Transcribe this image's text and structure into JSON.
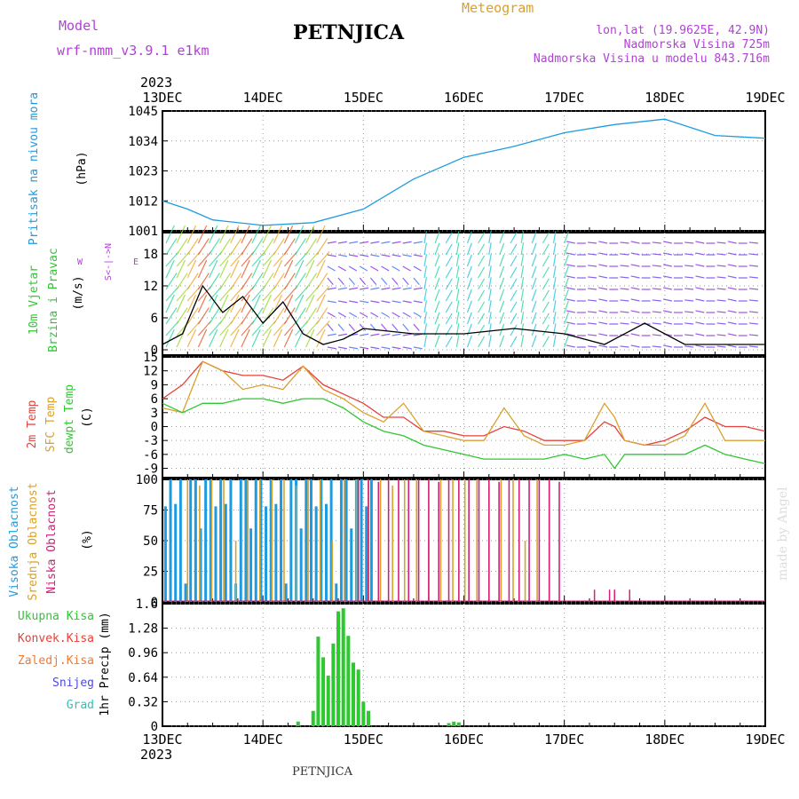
{
  "header": {
    "model_label": "Model",
    "model_name": "wrf-nmm_v3.9.1 e1km",
    "station": "PETNJICA",
    "meteogram": "Meteogram",
    "lonlat": "lon,lat (19.9625E, 42.9N)",
    "altitude": "Nadmorska Visina 725m",
    "model_altitude": "Nadmorska Visina u modelu 843.716m",
    "year_top": "2023",
    "year_bottom": "2023",
    "footer_station": "PETNJICA",
    "credit": "made by Angel"
  },
  "colors": {
    "pressure": "#1e9be0",
    "temp2m": "#e8403a",
    "sfc": "#d9a12c",
    "dew": "#2ec830",
    "high_cloud": "#1e9be0",
    "mid_cloud": "#d9a12c",
    "low_cloud": "#d1207a",
    "precip_total": "#2ec830",
    "precip_conv": "#e8403a",
    "precip_frozen": "#f07a30",
    "snow": "#4a4adf",
    "graupel": "#2fc3b0",
    "wind_label": "#2ec830",
    "dir_label": "#b23fd8"
  },
  "chart_data": [
    {
      "type": "line",
      "panel": "pressure",
      "ylabel_colored": "Pritisak na nivou mora",
      "ylabel_unit": "(hPa)",
      "x_ticks": [
        "13DEC",
        "14DEC",
        "15DEC",
        "16DEC",
        "17DEC",
        "18DEC",
        "19DEC"
      ],
      "yticks": [
        "1001",
        "1012",
        "1023",
        "1034",
        "1045"
      ],
      "ylim": [
        1001,
        1045
      ],
      "grid": true,
      "x": [
        0,
        0.25,
        0.5,
        1.0,
        1.5,
        2.0,
        2.5,
        3.0,
        3.5,
        4.0,
        4.5,
        5.0,
        5.5,
        6.0
      ],
      "values": [
        1012,
        1009,
        1005,
        1003,
        1004,
        1009,
        1020,
        1028,
        1032,
        1037,
        1040,
        1042,
        1036,
        1035
      ]
    },
    {
      "type": "line",
      "panel": "wind",
      "ylabel_colored_1": "10m Vjetar",
      "ylabel_colored_2": "Brzina i Pravac",
      "ylabel_unit": "(m/s)",
      "dir_compass": "S<-|->N",
      "dir_w": "W",
      "dir_e": "E",
      "yticks": [
        "0",
        "6",
        "12",
        "18"
      ],
      "ylim": [
        -1,
        22
      ],
      "grid": true,
      "x": [
        0,
        0.2,
        0.4,
        0.6,
        0.8,
        1.0,
        1.2,
        1.4,
        1.6,
        1.8,
        2.0,
        2.5,
        3.0,
        3.5,
        4.0,
        4.4,
        4.8,
        5.2,
        5.5,
        6.0
      ],
      "values": [
        1,
        3,
        12,
        7,
        10,
        5,
        9,
        3,
        1,
        2,
        4,
        3,
        3,
        4,
        3,
        1,
        5,
        1,
        1,
        1
      ]
    },
    {
      "type": "line",
      "panel": "temperature",
      "ylabel_2m": "2m Temp",
      "ylabel_sfc": "SFC Temp",
      "ylabel_dew": "dewpt Temp",
      "ylabel_unit": "(C)",
      "yticks": [
        "-9",
        "-6",
        "-3",
        "0",
        "3",
        "6",
        "9",
        "12",
        "15"
      ],
      "ylim": [
        -11,
        15
      ],
      "grid": true,
      "series": [
        {
          "key": "t2m",
          "x": [
            0,
            0.2,
            0.4,
            0.6,
            0.8,
            1.0,
            1.2,
            1.4,
            1.6,
            1.8,
            2.0,
            2.2,
            2.4,
            2.6,
            2.8,
            3.0,
            3.2,
            3.4,
            3.6,
            3.8,
            4.0,
            4.2,
            4.4,
            4.5,
            4.6,
            4.8,
            5.0,
            5.2,
            5.4,
            5.6,
            5.8,
            6.0
          ],
          "values": [
            6,
            9,
            14,
            12,
            11,
            11,
            10,
            13,
            9,
            7,
            5,
            2,
            2,
            -1,
            -1,
            -2,
            -2,
            0,
            -1,
            -3,
            -3,
            -3,
            1,
            0,
            -3,
            -4,
            -3,
            -1,
            2,
            0,
            0,
            -1
          ]
        },
        {
          "key": "tsfc",
          "x": [
            0,
            0.2,
            0.4,
            0.6,
            0.8,
            1.0,
            1.2,
            1.4,
            1.6,
            1.8,
            2.0,
            2.2,
            2.4,
            2.6,
            2.8,
            3.0,
            3.2,
            3.4,
            3.6,
            3.8,
            4.0,
            4.2,
            4.4,
            4.5,
            4.6,
            4.8,
            5.0,
            5.2,
            5.4,
            5.6,
            5.8,
            6.0
          ],
          "values": [
            4,
            3,
            14,
            12,
            8,
            9,
            8,
            13,
            8,
            6,
            3,
            1,
            5,
            -1,
            -2,
            -3,
            -3,
            4,
            -2,
            -4,
            -4,
            -3,
            5,
            2,
            -3,
            -4,
            -4,
            -2,
            5,
            -3,
            -3,
            -3
          ]
        },
        {
          "key": "tdew",
          "x": [
            0,
            0.2,
            0.4,
            0.6,
            0.8,
            1.0,
            1.2,
            1.4,
            1.6,
            1.8,
            2.0,
            2.2,
            2.4,
            2.6,
            2.8,
            3.0,
            3.2,
            3.4,
            3.6,
            3.8,
            4.0,
            4.2,
            4.4,
            4.5,
            4.6,
            4.8,
            5.0,
            5.2,
            5.4,
            5.6,
            5.8,
            6.0
          ],
          "values": [
            5,
            3,
            5,
            5,
            6,
            6,
            5,
            6,
            6,
            4,
            1,
            -1,
            -2,
            -4,
            -5,
            -6,
            -7,
            -7,
            -7,
            -7,
            -6,
            -7,
            -6,
            -9,
            -6,
            -6,
            -6,
            -6,
            -4,
            -6,
            -7,
            -8
          ]
        }
      ]
    },
    {
      "type": "bar",
      "panel": "cloud",
      "ylabel_high": "Visoka Oblacnost",
      "ylabel_mid": "Srednja Oblacnost",
      "ylabel_low": "Niska Oblacnost",
      "ylabel_unit": "(%)",
      "yticks": [
        "0",
        "25",
        "50",
        "75",
        "100"
      ],
      "ylim": [
        0,
        100
      ],
      "grid": true,
      "series": [
        {
          "key": "high",
          "start": 0.03,
          "end": 2.1,
          "step": 0.05,
          "pattern": [
            78,
            100,
            80,
            100,
            15,
            100,
            100,
            60,
            100,
            100
          ]
        },
        {
          "key": "mid",
          "start": 0.25,
          "end": 3.9,
          "step": 0.12,
          "pattern": [
            100,
            95,
            100,
            100,
            50,
            100,
            100,
            100
          ]
        },
        {
          "key": "low",
          "start": 1.95,
          "end": 4.05,
          "step": 0.1,
          "pattern": [
            100,
            100,
            98,
            100,
            100,
            100
          ]
        },
        {
          "key": "low_late",
          "x": [
            4.3,
            4.45,
            4.5,
            4.65
          ],
          "values": [
            10,
            10,
            10,
            10
          ]
        }
      ]
    },
    {
      "type": "bar",
      "panel": "precip",
      "legend": [
        "Ukupna Kisa",
        "Konvek.Kisa",
        "Zaledj.Kisa",
        "Snijeg",
        "Grad"
      ],
      "ylabel": "1hr Precip (mm)",
      "yticks": [
        "0",
        "0.32",
        "0.64",
        "0.96",
        "1.28",
        "1.6"
      ],
      "ylim": [
        0,
        1.6
      ],
      "grid": true,
      "x": [
        1.35,
        1.5,
        1.55,
        1.6,
        1.65,
        1.7,
        1.75,
        1.8,
        1.85,
        1.9,
        1.95,
        2.0,
        2.05,
        2.85,
        2.9,
        2.95
      ],
      "values": [
        0.06,
        0.2,
        1.17,
        0.9,
        0.66,
        1.08,
        1.5,
        1.54,
        1.18,
        0.83,
        0.74,
        0.32,
        0.2,
        0.04,
        0.06,
        0.05
      ]
    }
  ]
}
